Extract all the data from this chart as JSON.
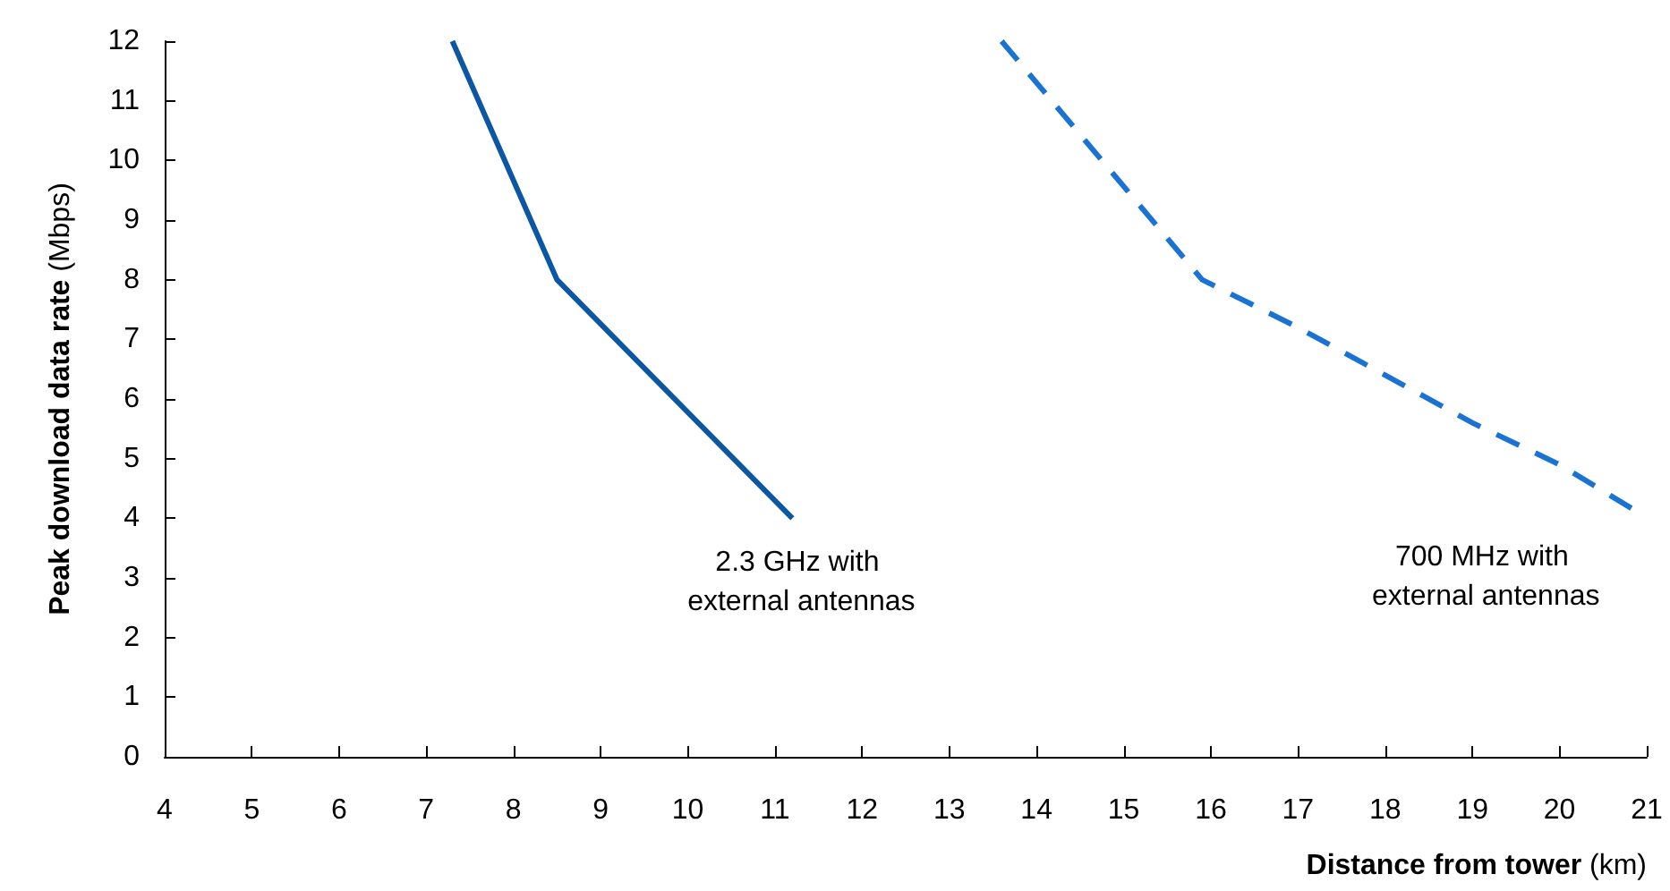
{
  "chart_data": {
    "type": "line",
    "xlabel": "Distance from tower (km)",
    "ylabel": "Peak download data rate (Mbps)",
    "xlim": [
      4,
      21
    ],
    "xticks": [
      4,
      5,
      6,
      7,
      8,
      9,
      10,
      11,
      12,
      13,
      14,
      15,
      16,
      17,
      18,
      19,
      20,
      21
    ],
    "ylim": [
      0,
      12
    ],
    "yticks": [
      0,
      1,
      2,
      3,
      4,
      5,
      6,
      7,
      8,
      9,
      10,
      11,
      12
    ],
    "grid": false,
    "legend": false,
    "marker": "none",
    "series": [
      {
        "name": "2.3 GHz with external antennas",
        "color": "#0b57a4",
        "line_style": "solid",
        "x": [
          7.3,
          8.5,
          11.2
        ],
        "values": [
          12,
          8,
          4
        ]
      },
      {
        "name": "700 MHz with external antennas",
        "color": "#1a73d4",
        "line_style": "dashed",
        "x": [
          13.6,
          15.9,
          17,
          18,
          19,
          20,
          20.9
        ],
        "values": [
          12,
          8,
          7.2,
          6.4,
          5.6,
          4.9,
          4.1
        ]
      }
    ]
  }
}
